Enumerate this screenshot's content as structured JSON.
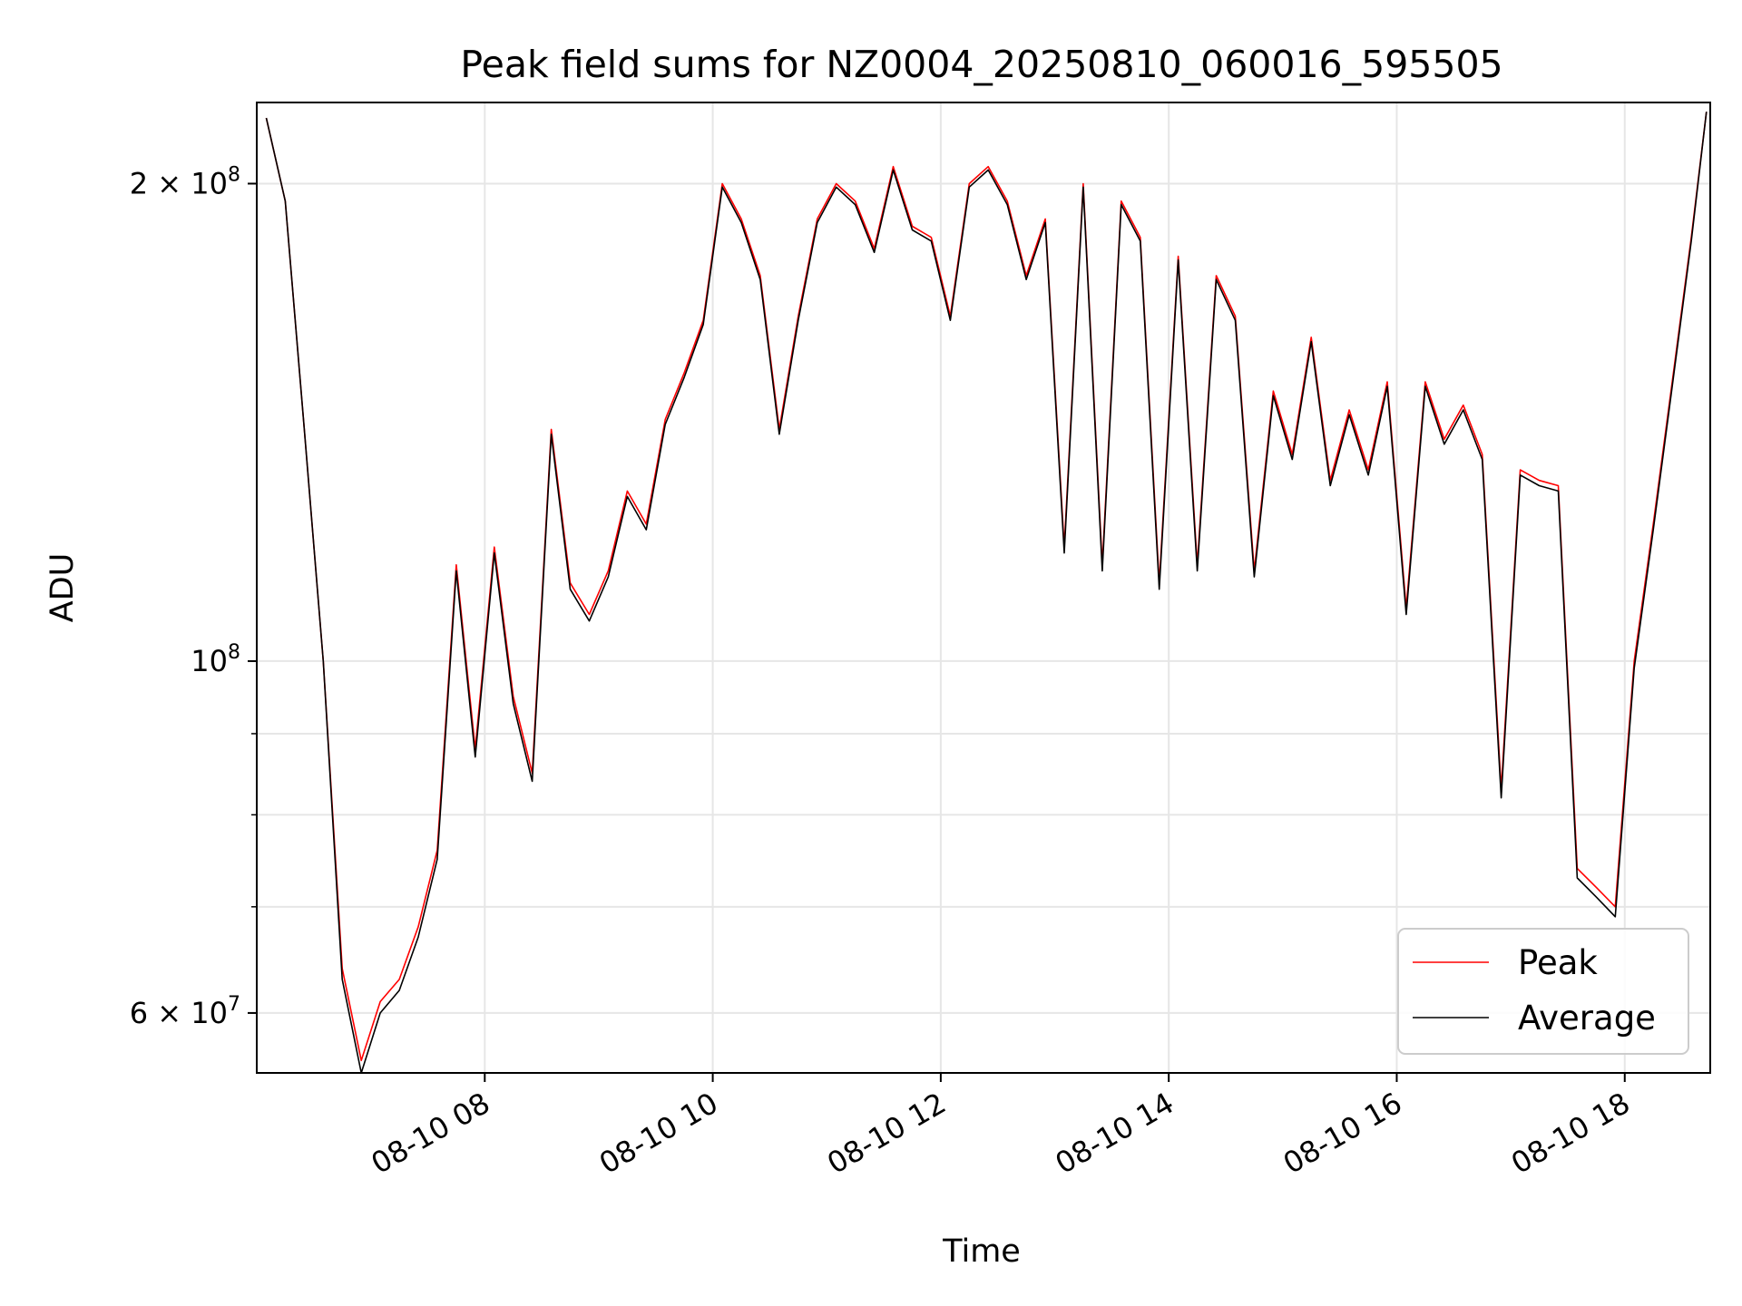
{
  "chart_data": {
    "type": "line",
    "title": "Peak field sums for NZ0004_20250810_060016_595505",
    "xlabel": "Time",
    "ylabel": "ADU",
    "y_scale": "log",
    "grid": true,
    "legend_position": "lower-right",
    "xlim": [
      "08-10 06:00",
      "08-10 18:45"
    ],
    "ylim": [
      55000000,
      225000000
    ],
    "x_ticks": [
      "08-10 08",
      "08-10 10",
      "08-10 12",
      "08-10 14",
      "08-10 16",
      "08-10 18"
    ],
    "y_ticks": [
      {
        "value": 60000000,
        "label": "6 × 10",
        "exp": "7"
      },
      {
        "value": 100000000,
        "label": "10",
        "exp": "8"
      },
      {
        "value": 200000000,
        "label": "2 × 10",
        "exp": "8"
      }
    ],
    "colors": {
      "Peak": "#ff0000",
      "Average": "#000000"
    },
    "x": [
      "08-10 06:05",
      "08-10 06:15",
      "08-10 06:25",
      "08-10 06:35",
      "08-10 06:45",
      "08-10 06:55",
      "08-10 07:05",
      "08-10 07:15",
      "08-10 07:25",
      "08-10 07:35",
      "08-10 07:45",
      "08-10 07:55",
      "08-10 08:05",
      "08-10 08:15",
      "08-10 08:25",
      "08-10 08:35",
      "08-10 08:45",
      "08-10 08:55",
      "08-10 09:05",
      "08-10 09:15",
      "08-10 09:25",
      "08-10 09:35",
      "08-10 09:45",
      "08-10 09:55",
      "08-10 10:05",
      "08-10 10:15",
      "08-10 10:25",
      "08-10 10:35",
      "08-10 10:45",
      "08-10 10:55",
      "08-10 11:05",
      "08-10 11:15",
      "08-10 11:25",
      "08-10 11:35",
      "08-10 11:45",
      "08-10 11:55",
      "08-10 12:05",
      "08-10 12:15",
      "08-10 12:25",
      "08-10 12:35",
      "08-10 12:45",
      "08-10 12:55",
      "08-10 13:05",
      "08-10 13:15",
      "08-10 13:25",
      "08-10 13:35",
      "08-10 13:45",
      "08-10 13:55",
      "08-10 14:05",
      "08-10 14:15",
      "08-10 14:25",
      "08-10 14:35",
      "08-10 14:45",
      "08-10 14:55",
      "08-10 15:05",
      "08-10 15:15",
      "08-10 15:25",
      "08-10 15:35",
      "08-10 15:45",
      "08-10 15:55",
      "08-10 16:05",
      "08-10 16:15",
      "08-10 16:25",
      "08-10 16:35",
      "08-10 16:45",
      "08-10 16:55",
      "08-10 17:05",
      "08-10 17:15",
      "08-10 17:25",
      "08-10 17:35",
      "08-10 17:45",
      "08-10 17:55",
      "08-10 18:05",
      "08-10 18:15",
      "08-10 18:25",
      "08-10 18:35",
      "08-10 18:43"
    ],
    "series": [
      {
        "name": "Peak",
        "values": [
          220000000,
          195000000,
          140000000,
          100000000,
          64000000,
          56000000,
          61000000,
          63000000,
          68000000,
          76000000,
          115000000,
          88000000,
          118000000,
          95000000,
          85000000,
          140000000,
          112000000,
          107000000,
          114000000,
          128000000,
          122000000,
          142000000,
          152000000,
          164000000,
          200000000,
          190000000,
          175000000,
          140000000,
          165000000,
          190000000,
          200000000,
          195000000,
          182000000,
          205000000,
          188000000,
          185000000,
          165000000,
          200000000,
          205000000,
          195000000,
          175000000,
          190000000,
          118000000,
          200000000,
          115000000,
          195000000,
          185000000,
          112000000,
          180000000,
          115000000,
          175000000,
          165000000,
          114000000,
          148000000,
          135000000,
          160000000,
          130000000,
          144000000,
          132000000,
          150000000,
          108000000,
          150000000,
          138000000,
          145000000,
          135000000,
          83000000,
          132000000,
          130000000,
          129000000,
          74000000,
          72000000,
          70000000,
          100000000,
          122000000,
          150000000,
          185000000,
          222000000
        ]
      },
      {
        "name": "Average",
        "values": [
          220000000,
          195000000,
          140000000,
          100000000,
          63000000,
          55000000,
          60000000,
          62000000,
          67000000,
          75000000,
          114000000,
          87000000,
          117000000,
          94000000,
          84000000,
          139000000,
          111000000,
          106000000,
          113000000,
          127000000,
          121000000,
          141000000,
          151000000,
          163000000,
          199000000,
          189000000,
          174000000,
          139000000,
          164000000,
          189000000,
          199000000,
          194000000,
          181000000,
          204000000,
          187000000,
          184000000,
          164000000,
          199000000,
          204000000,
          194000000,
          174000000,
          189000000,
          117000000,
          199000000,
          114000000,
          194000000,
          184000000,
          111000000,
          179000000,
          114000000,
          174000000,
          164000000,
          113000000,
          147000000,
          134000000,
          159000000,
          129000000,
          143000000,
          131000000,
          149000000,
          107000000,
          149000000,
          137000000,
          144000000,
          134000000,
          82000000,
          131000000,
          129000000,
          128000000,
          73000000,
          71000000,
          69000000,
          99000000,
          121000000,
          149000000,
          184000000,
          222000000
        ]
      }
    ]
  }
}
